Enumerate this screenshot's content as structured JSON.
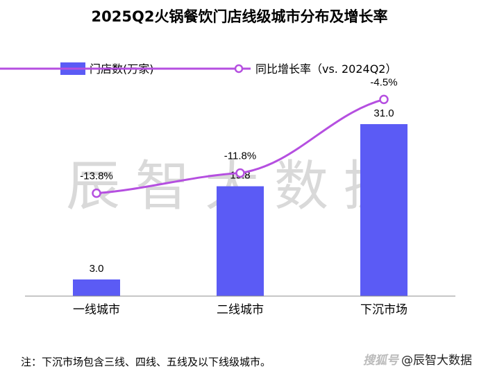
{
  "chart_data": {
    "type": "bar",
    "title": "2025Q2火锅餐饮门店线级城市分布及增长率",
    "categories": [
      "一线城市",
      "二线城市",
      "下沉市场"
    ],
    "series": [
      {
        "name": "门店数(万家)",
        "type": "bar",
        "values": [
          3.0,
          19.8,
          31.0
        ],
        "labels": [
          "3.0",
          "19.8",
          "31.0"
        ],
        "color": "#5b5bf5"
      },
      {
        "name": "同比增长率（vs. 2024Q2）",
        "type": "line",
        "values": [
          -13.8,
          -11.8,
          -4.5
        ],
        "labels": [
          "-13.8%",
          "-11.8%",
          "-4.5%"
        ],
        "color": "#b54fe0"
      }
    ],
    "ylim": [
      0,
      40
    ],
    "y2lim": [
      -24,
      -2
    ],
    "grid": false,
    "legend": "top"
  },
  "watermark": "辰智大数据",
  "footnote": "注：下沉市场包含三线、四线、五线及以下线级城市。",
  "brand": {
    "source": "搜狐号",
    "name": "@辰智大数据"
  }
}
